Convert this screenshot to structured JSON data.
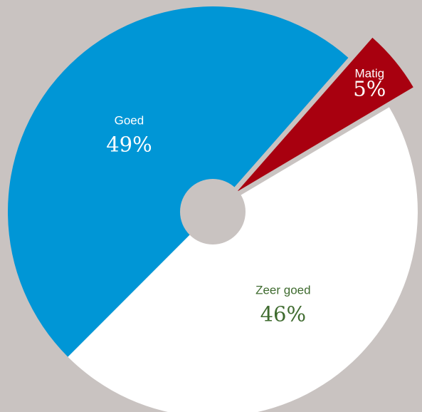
{
  "chart_data": {
    "type": "pie",
    "title": "",
    "slices": [
      {
        "label": "Zeer goed",
        "value": 46,
        "display": "46%",
        "color": "#ffffff",
        "text_color": "#3f6b2f",
        "exploded": false
      },
      {
        "label": "Goed",
        "value": 49,
        "display": "49%",
        "color": "#0096d6",
        "text_color": "#ffffff",
        "exploded": false
      },
      {
        "label": "Matig",
        "value": 5,
        "display": "5%",
        "color": "#a8000f",
        "text_color": "#ffffff",
        "exploded": true
      }
    ],
    "center_hole": true,
    "legend": "none"
  },
  "colors": {
    "background": "#c9c3c1",
    "center_hole": "#c9c3c1"
  }
}
